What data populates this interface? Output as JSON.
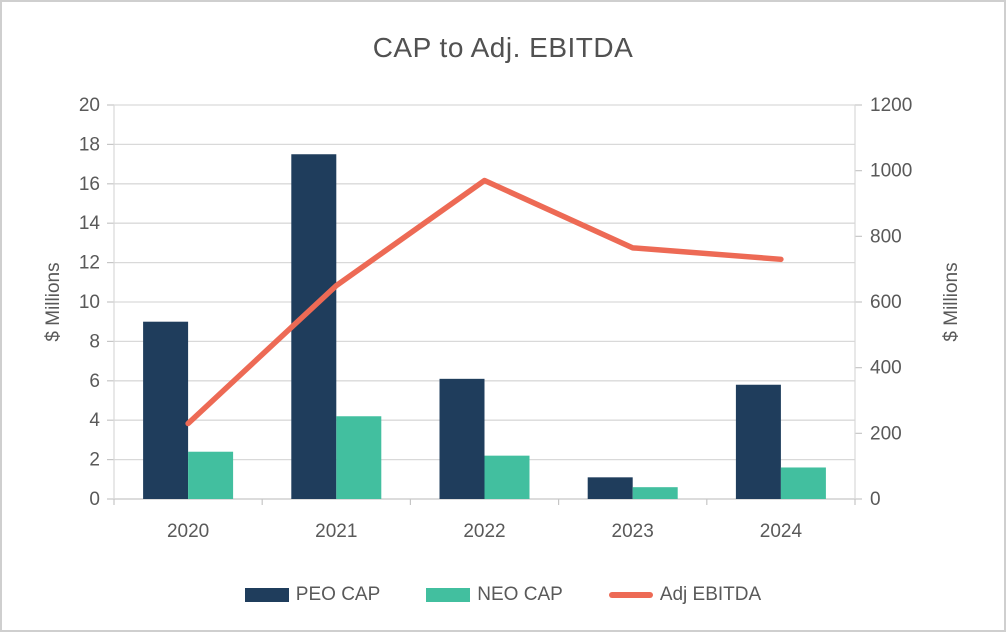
{
  "chart_data": {
    "type": "bar",
    "subtype": "combo-bar-line",
    "title": "CAP to Adj. EBITDA",
    "categories": [
      "2020",
      "2021",
      "2022",
      "2023",
      "2024"
    ],
    "bar_series": [
      {
        "name": "PEO CAP",
        "axis": "left",
        "color": "#1f3d5c",
        "values": [
          9.0,
          17.5,
          6.1,
          1.1,
          5.8
        ]
      },
      {
        "name": "NEO CAP",
        "axis": "left",
        "color": "#42bf9f",
        "values": [
          2.4,
          4.2,
          2.2,
          0.6,
          1.6
        ]
      }
    ],
    "line_series": [
      {
        "name": "Adj EBITDA",
        "axis": "right",
        "color": "#ed6a55",
        "values": [
          230,
          650,
          970,
          765,
          730
        ]
      }
    ],
    "left_axis": {
      "label": "$ Millions",
      "min": 0,
      "max": 20,
      "ticks": [
        "0",
        "2",
        "4",
        "6",
        "8",
        "10",
        "12",
        "14",
        "16",
        "18",
        "20"
      ]
    },
    "right_axis": {
      "label": "$ Millions",
      "min": 0,
      "max": 1200,
      "ticks": [
        "0",
        "200",
        "400",
        "600",
        "800",
        "1000",
        "1200"
      ]
    },
    "grid": true,
    "legend_position": "bottom",
    "colors": {
      "grid_line": "#d9d9d9",
      "axis_line": "#c6c6c6",
      "tick_label_text": "#595959",
      "title_text": "#515151",
      "background": "#ffffff",
      "figure_border": "#cfcfcf"
    }
  }
}
